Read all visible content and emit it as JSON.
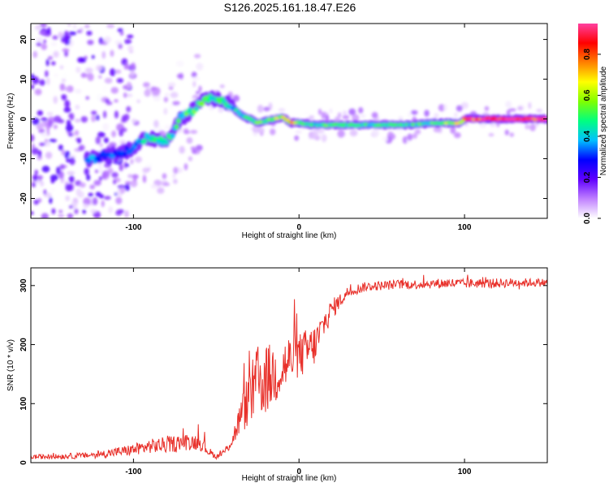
{
  "title": "S126.2025.161.18.47.E26",
  "chart_data": [
    {
      "type": "heatmap",
      "title": "S126.2025.161.18.47.E26",
      "xlabel": "Height of straight line (km)",
      "ylabel": "Frequency (Hz)",
      "xlim": [
        -162,
        150
      ],
      "ylim": [
        -25,
        24
      ],
      "x_ticks": [
        "-100",
        "0",
        "100"
      ],
      "y_ticks": [
        "-20",
        "-10",
        "0",
        "10",
        "20"
      ],
      "colorbar": {
        "label": "Normalized spectral amplitude",
        "range": [
          0.0,
          0.95
        ],
        "ticks": [
          "0.0",
          "0.2",
          "0.4",
          "0.6",
          "0.8"
        ],
        "colors": [
          "#ffffff",
          "#c080ff",
          "#6000ff",
          "#0000ff",
          "#00c0ff",
          "#00ff80",
          "#80ff00",
          "#ffff00",
          "#ff8000",
          "#ff0000",
          "#ff40a0"
        ]
      },
      "ridge": {
        "x": [
          -126,
          -115,
          -105,
          -98,
          -92,
          -85,
          -78,
          -72,
          -66,
          -60,
          -55,
          -50,
          -45,
          -40,
          -35,
          -30,
          -25,
          -20,
          -15,
          -10,
          -5,
          0,
          10,
          20,
          30,
          40,
          50,
          60,
          70,
          80,
          90,
          98,
          100,
          110,
          120,
          130,
          140,
          150
        ],
        "freq_hz": [
          -10,
          -9,
          -8.5,
          -6.5,
          -4.5,
          -5.5,
          -5,
          0,
          1.5,
          4,
          5,
          5,
          4.5,
          3,
          1,
          0,
          -1,
          -0.5,
          0,
          0.5,
          -1,
          -1,
          -1.5,
          -1.5,
          -1.5,
          -1.5,
          -1.5,
          -1.5,
          -1.5,
          -1,
          -1,
          -1,
          0,
          0,
          0,
          0,
          0,
          0
        ],
        "amplitude": [
          0.35,
          0.3,
          0.3,
          0.35,
          0.4,
          0.45,
          0.45,
          0.45,
          0.5,
          0.5,
          0.5,
          0.45,
          0.45,
          0.4,
          0.45,
          0.45,
          0.5,
          0.55,
          0.6,
          0.6,
          0.7,
          0.5,
          0.45,
          0.5,
          0.45,
          0.45,
          0.45,
          0.45,
          0.45,
          0.5,
          0.55,
          0.6,
          0.85,
          0.9,
          0.9,
          0.9,
          0.9,
          0.85
        ]
      }
    },
    {
      "type": "line",
      "xlabel": "Height of straight line (km)",
      "ylabel": "SNR (10 * v/v)",
      "xlim": [
        -162,
        150
      ],
      "ylim": [
        0,
        330
      ],
      "x_ticks": [
        "-100",
        "0",
        "100"
      ],
      "y_ticks": [
        "0",
        "100",
        "200",
        "300"
      ],
      "color": "#e8302a",
      "series": [
        {
          "x": [
            -162,
            -150,
            -140,
            -130,
            -120,
            -110,
            -100,
            -90,
            -80,
            -70,
            -60,
            -55,
            -50,
            -45,
            -40,
            -35,
            -30,
            -25,
            -20,
            -15,
            -10,
            -5,
            0,
            5,
            10,
            15,
            20,
            25,
            30,
            40,
            50,
            60,
            70,
            80,
            90,
            100,
            110,
            120,
            130,
            140,
            150
          ],
          "y": [
            10,
            10,
            11,
            12,
            14,
            18,
            22,
            28,
            30,
            35,
            35,
            20,
            10,
            18,
            40,
            80,
            110,
            135,
            140,
            150,
            160,
            175,
            180,
            190,
            200,
            235,
            260,
            275,
            290,
            298,
            300,
            302,
            302,
            303,
            304,
            303,
            304,
            304,
            305,
            305,
            305
          ],
          "noise": [
            4,
            4,
            5,
            5,
            6,
            8,
            10,
            12,
            14,
            14,
            14,
            8,
            4,
            6,
            14,
            30,
            50,
            65,
            60,
            55,
            50,
            45,
            40,
            38,
            35,
            25,
            18,
            12,
            10,
            8,
            8,
            8,
            8,
            8,
            9,
            8,
            8,
            8,
            8,
            7,
            7
          ]
        }
      ]
    }
  ]
}
